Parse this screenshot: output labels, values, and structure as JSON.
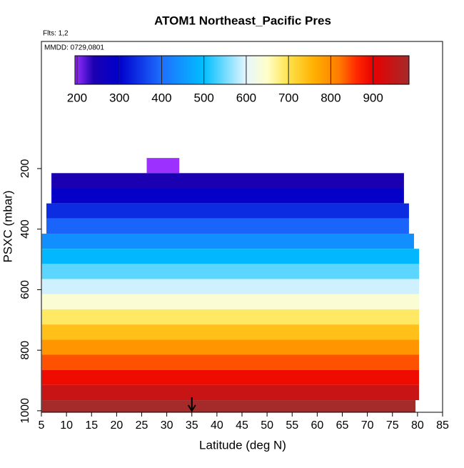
{
  "chart_data": {
    "type": "curtain",
    "title": "ATOM1 Northeast_Pacific Pres",
    "flights_label": "Flts: 1,2",
    "dates_label": "MMDD: 0729,0801",
    "x_label": "Latitude (deg N)",
    "y_label": "PSXC (mbar)",
    "xlim": [
      5,
      85
    ],
    "xticks": [
      5,
      10,
      15,
      20,
      25,
      30,
      35,
      40,
      45,
      50,
      55,
      60,
      65,
      70,
      75,
      80,
      85
    ],
    "ylim": [
      1005,
      -220
    ],
    "yticks": [
      200,
      400,
      600,
      800,
      1000
    ],
    "colorbar_lim": [
      195,
      985
    ],
    "colorbar_ticks": [
      200,
      300,
      400,
      500,
      600,
      700,
      800,
      900
    ],
    "colormap": [
      {
        "value": 195,
        "color": "#9b30ff"
      },
      {
        "value": 240,
        "color": "#1a00b0"
      },
      {
        "value": 300,
        "color": "#0000cd"
      },
      {
        "value": 400,
        "color": "#1e6fff"
      },
      {
        "value": 500,
        "color": "#00bfff"
      },
      {
        "value": 600,
        "color": "#e6f6ff"
      },
      {
        "value": 650,
        "color": "#ffffc8"
      },
      {
        "value": 700,
        "color": "#ffe24a"
      },
      {
        "value": 760,
        "color": "#ffb000"
      },
      {
        "value": 820,
        "color": "#ff7a00"
      },
      {
        "value": 860,
        "color": "#ff2a00"
      },
      {
        "value": 900,
        "color": "#e80000"
      },
      {
        "value": 985,
        "color": "#a52a2a"
      }
    ],
    "rows": {
      "values": [
        190,
        240,
        290,
        340,
        390,
        440,
        490,
        540,
        590,
        640,
        690,
        740,
        790,
        840,
        890,
        940,
        985
      ],
      "p_top": [
        165,
        215,
        265,
        315,
        365,
        415,
        465,
        515,
        565,
        615,
        665,
        715,
        765,
        815,
        865,
        915,
        965
      ],
      "p_bottom": [
        215,
        265,
        315,
        365,
        415,
        465,
        515,
        565,
        615,
        665,
        715,
        765,
        815,
        865,
        915,
        965,
        1005
      ],
      "lat_min": [
        26,
        7,
        7,
        6,
        6,
        5.1,
        5.1,
        5.1,
        5.1,
        5.1,
        5.1,
        5.1,
        5.1,
        5.1,
        5.1,
        5.1,
        5.1
      ],
      "lat_max": [
        32.5,
        77.3,
        77.3,
        78.3,
        78.3,
        79.3,
        80.3,
        80.3,
        80.3,
        80.3,
        80.3,
        80.3,
        80.3,
        80.3,
        80.3,
        80.3,
        79.6
      ]
    },
    "arrow_lat": 35
  }
}
